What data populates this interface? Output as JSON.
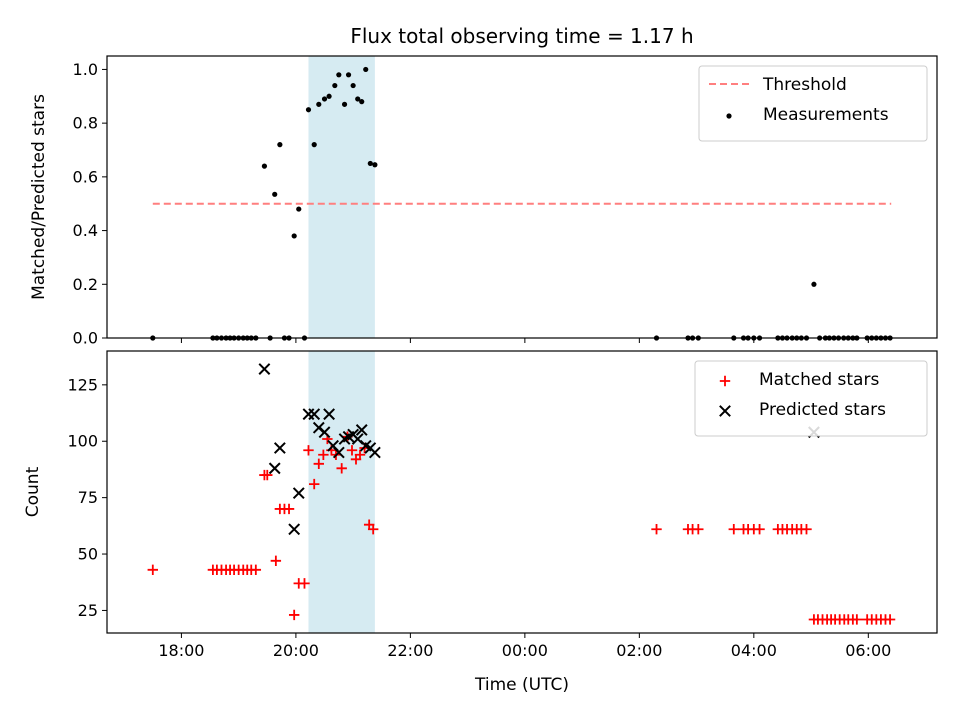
{
  "chart_data": {
    "type": "scatter",
    "title": "Flux total observing time = 1.17 h",
    "xlabel": "Time (UTC)",
    "x_unit": "hours UTC",
    "xlim": [
      16.7,
      31.2
    ],
    "x_ticks": [
      {
        "value": 18,
        "label": "18:00"
      },
      {
        "value": 20,
        "label": "20:00"
      },
      {
        "value": 22,
        "label": "22:00"
      },
      {
        "value": 24,
        "label": "00:00"
      },
      {
        "value": 26,
        "label": "02:00"
      },
      {
        "value": 28,
        "label": "04:00"
      },
      {
        "value": 30,
        "label": "06:00"
      }
    ],
    "highlight_span": {
      "x": [
        20.22,
        21.38
      ],
      "color": "#add8e6"
    },
    "panels": [
      {
        "ylabel": "Matched/Predicted stars",
        "ylim": [
          0,
          1.05
        ],
        "y_ticks": [
          "0.0",
          "0.2",
          "0.4",
          "0.6",
          "0.8",
          "1.0"
        ],
        "y_tick_values": [
          0,
          0.2,
          0.4,
          0.6,
          0.8,
          1.0
        ],
        "legend": {
          "position": "upper right"
        },
        "series": [
          {
            "name": "Threshold",
            "kind": "line",
            "style": "dashed",
            "color": "#ff7f7f",
            "x": [
              17.5,
              30.4
            ],
            "y": [
              0.5,
              0.5
            ]
          },
          {
            "name": "Measurements",
            "kind": "scatter",
            "marker": "dot",
            "color": "#000000",
            "x": [
              17.5,
              18.55,
              18.62,
              18.7,
              18.78,
              18.85,
              18.92,
              19.0,
              19.08,
              19.15,
              19.22,
              19.3,
              19.45,
              19.55,
              19.63,
              19.72,
              19.8,
              19.88,
              19.97,
              20.05,
              20.15,
              20.22,
              20.32,
              20.4,
              20.5,
              20.58,
              20.68,
              20.75,
              20.85,
              20.92,
              21.0,
              21.08,
              21.15,
              21.22,
              21.3,
              21.38,
              26.3,
              26.85,
              26.93,
              27.03,
              27.65,
              27.82,
              27.9,
              28.0,
              28.1,
              28.42,
              28.5,
              28.58,
              28.67,
              28.75,
              28.83,
              28.92,
              29.05,
              29.15,
              29.25,
              29.32,
              29.4,
              29.48,
              29.57,
              29.65,
              29.73,
              29.8,
              29.98,
              30.06,
              30.14,
              30.22,
              30.3,
              30.38
            ],
            "y": [
              0,
              0,
              0,
              0,
              0,
              0,
              0,
              0,
              0,
              0,
              0,
              0,
              0.64,
              0,
              0.535,
              0.72,
              0,
              0,
              0.38,
              0.48,
              0,
              0.85,
              0.72,
              0.87,
              0.89,
              0.9,
              0.94,
              0.98,
              0.87,
              0.98,
              0.94,
              0.89,
              0.88,
              1.0,
              0.65,
              0.645,
              0,
              0,
              0,
              0,
              0,
              0,
              0,
              0,
              0,
              0,
              0,
              0,
              0,
              0,
              0,
              0,
              0.2,
              0,
              0,
              0,
              0,
              0,
              0,
              0,
              0,
              0,
              0,
              0,
              0,
              0,
              0,
              0
            ]
          }
        ]
      },
      {
        "ylabel": "Count",
        "ylim": [
          15,
          140
        ],
        "y_ticks": [
          "25",
          "50",
          "75",
          "100",
          "125"
        ],
        "y_tick_values": [
          25,
          50,
          75,
          100,
          125
        ],
        "legend": {
          "position": "upper right"
        },
        "series": [
          {
            "name": "Matched stars",
            "kind": "scatter",
            "marker": "plus",
            "color": "#ff0000",
            "x": [
              17.5,
              18.55,
              18.62,
              18.7,
              18.78,
              18.85,
              18.92,
              19.0,
              19.08,
              19.15,
              19.22,
              19.3,
              19.45,
              19.5,
              19.65,
              19.72,
              19.8,
              19.88,
              19.97,
              20.05,
              20.15,
              20.22,
              20.32,
              20.4,
              20.48,
              20.55,
              20.62,
              20.7,
              20.8,
              20.9,
              20.98,
              21.05,
              21.12,
              21.2,
              21.28,
              21.35,
              26.3,
              26.85,
              26.93,
              27.03,
              27.65,
              27.82,
              27.9,
              28.0,
              28.1,
              28.42,
              28.5,
              28.58,
              28.67,
              28.75,
              28.83,
              28.92,
              29.05,
              29.12,
              29.2,
              29.28,
              29.35,
              29.42,
              29.5,
              29.58,
              29.65,
              29.73,
              29.8,
              29.98,
              30.06,
              30.14,
              30.22,
              30.3,
              30.38
            ],
            "y": [
              43,
              43,
              43,
              43,
              43,
              43,
              43,
              43,
              43,
              43,
              43,
              43,
              85,
              85,
              47,
              70,
              70,
              70,
              23,
              37,
              37,
              96,
              81,
              90,
              94,
              101,
              96,
              94,
              88,
              102,
              96,
              92,
              94,
              97,
              63,
              61,
              61,
              61,
              61,
              61,
              61,
              61,
              61,
              61,
              61,
              61,
              61,
              61,
              61,
              61,
              61,
              61,
              21,
              21,
              21,
              21,
              21,
              21,
              21,
              21,
              21,
              21,
              21,
              21,
              21,
              21,
              21,
              21,
              21
            ]
          },
          {
            "name": "Predicted stars",
            "kind": "scatter",
            "marker": "x",
            "color": "#000000",
            "x": [
              19.45,
              19.63,
              19.72,
              19.97,
              20.05,
              20.22,
              20.32,
              20.4,
              20.5,
              20.58,
              20.65,
              20.75,
              20.85,
              20.92,
              21.0,
              21.08,
              21.15,
              21.22,
              21.3,
              21.38,
              29.05
            ],
            "y": [
              132,
              88,
              97,
              61,
              77,
              112,
              112,
              106,
              104,
              112,
              98,
              95,
              101,
              102,
              103,
              101,
              105,
              98,
              97,
              95,
              104
            ]
          }
        ]
      }
    ]
  }
}
